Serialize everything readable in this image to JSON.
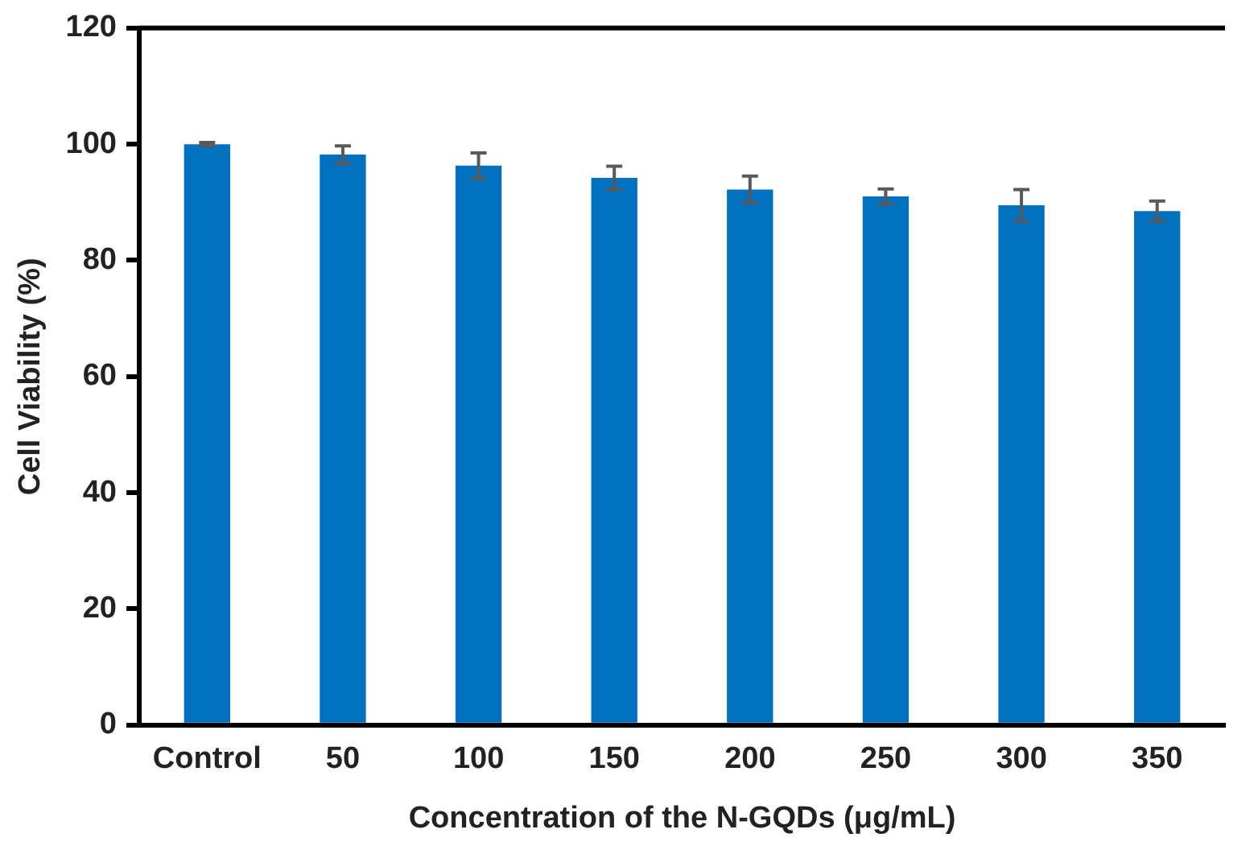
{
  "chart_data": {
    "type": "bar",
    "xlabel": "Concentration of the N-GQDs (μg/mL)",
    "ylabel": "Cell Viability (%)",
    "categories": [
      "Control",
      "50",
      "100",
      "150",
      "200",
      "250",
      "300",
      "350"
    ],
    "values": [
      100,
      98.2,
      96.3,
      94.2,
      92.2,
      91,
      89.5,
      88.5
    ],
    "errors": [
      0.3,
      1.5,
      2.2,
      2,
      2.3,
      1.3,
      2.7,
      1.7
    ],
    "color": "#0070c0",
    "ylim": [
      0,
      120
    ],
    "yticks": [
      0,
      20,
      40,
      60,
      80,
      100,
      120
    ],
    "grid": false,
    "legend": false
  }
}
